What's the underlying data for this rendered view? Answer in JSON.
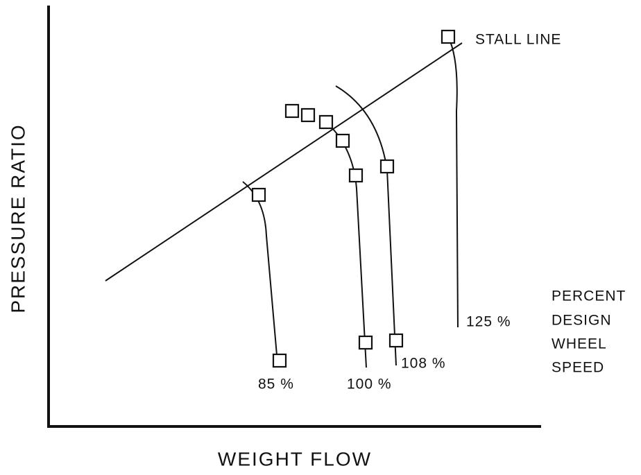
{
  "axes": {
    "x_label": "WEIGHT FLOW",
    "y_label": "PRESSURE RATIO"
  },
  "stall_line": {
    "label": "STALL LINE"
  },
  "speed_lines": [
    {
      "label": "85 %"
    },
    {
      "label": "100 %"
    },
    {
      "label": "108 %"
    },
    {
      "label": "125 %"
    }
  ],
  "legend": {
    "lines": [
      "PERCENT",
      "DESIGN",
      "WHEEL",
      "SPEED"
    ]
  }
}
